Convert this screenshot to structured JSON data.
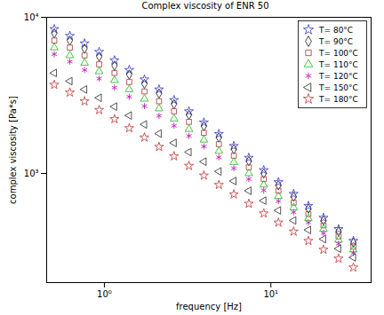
{
  "chart_data": {
    "type": "scatter",
    "title": "Complex viscosity of ENR 50",
    "x_label": "frequency [Hz]",
    "y_label": "complex viscosity [Pa*s]",
    "log": true,
    "grid": false,
    "legend": "top-right",
    "xlim": [
      0.45,
      40
    ],
    "ylim": [
      200,
      10000
    ],
    "xticks": [
      {
        "value": 1,
        "label": "10⁰"
      },
      {
        "value": 10,
        "label": "10¹"
      }
    ],
    "yticks": [
      {
        "value": 1000,
        "label": "10³"
      },
      {
        "value": 10000,
        "label": "10⁴"
      }
    ],
    "x": [
      0.5,
      0.62,
      0.76,
      0.93,
      1.15,
      1.41,
      1.74,
      2.13,
      2.62,
      3.22,
      3.96,
      4.87,
      5.99,
      7.37,
      9.06,
      11.1,
      13.7,
      16.8,
      20.7,
      25.5,
      31.3
    ],
    "series": [
      {
        "name": "T= 80°C",
        "color": "#4a4ad0",
        "marker": "pentagram",
        "values": [
          8400,
          7600,
          6800,
          6000,
          5300,
          4600,
          4000,
          3450,
          2950,
          2500,
          2120,
          1790,
          1500,
          1260,
          1050,
          880,
          740,
          620,
          520,
          440,
          370
        ]
      },
      {
        "name": "T= 90°C",
        "color": "#303030",
        "marker": "diamond",
        "values": [
          7900,
          7100,
          6300,
          5600,
          4900,
          4300,
          3750,
          3250,
          2780,
          2370,
          2010,
          1700,
          1430,
          1200,
          1000,
          840,
          710,
          595,
          500,
          425,
          360
        ]
      },
      {
        "name": "T= 100°C",
        "color": "#b04848",
        "marker": "square",
        "values": [
          7100,
          6400,
          5700,
          5000,
          4400,
          3850,
          3350,
          2900,
          2500,
          2140,
          1820,
          1540,
          1300,
          1095,
          920,
          775,
          650,
          550,
          465,
          395,
          340
        ]
      },
      {
        "name": "T= 110°C",
        "color": "#30c030",
        "marker": "triangle",
        "values": [
          6400,
          5700,
          5100,
          4500,
          3950,
          3450,
          3000,
          2600,
          2240,
          1920,
          1640,
          1390,
          1180,
          1000,
          845,
          715,
          605,
          515,
          440,
          375,
          325
        ]
      },
      {
        "name": "T= 120°C",
        "color": "#c020c0",
        "marker": "asterisk",
        "values": [
          5800,
          5200,
          4600,
          4050,
          3550,
          3100,
          2700,
          2340,
          2020,
          1740,
          1490,
          1270,
          1080,
          920,
          780,
          665,
          565,
          485,
          415,
          355,
          310
        ]
      },
      {
        "name": "T= 150°C",
        "color": "#404040",
        "marker": "triangle-left",
        "values": [
          4400,
          3900,
          3450,
          3050,
          2680,
          2350,
          2060,
          1800,
          1570,
          1370,
          1190,
          1030,
          895,
          775,
          670,
          580,
          500,
          435,
          380,
          330,
          290
        ]
      },
      {
        "name": "T= 180°C",
        "color": "#c84848",
        "marker": "pentagram",
        "values": [
          3700,
          3300,
          2900,
          2550,
          2230,
          1950,
          1700,
          1480,
          1290,
          1120,
          970,
          845,
          735,
          640,
          555,
          485,
          425,
          370,
          325,
          285,
          250
        ]
      }
    ]
  }
}
